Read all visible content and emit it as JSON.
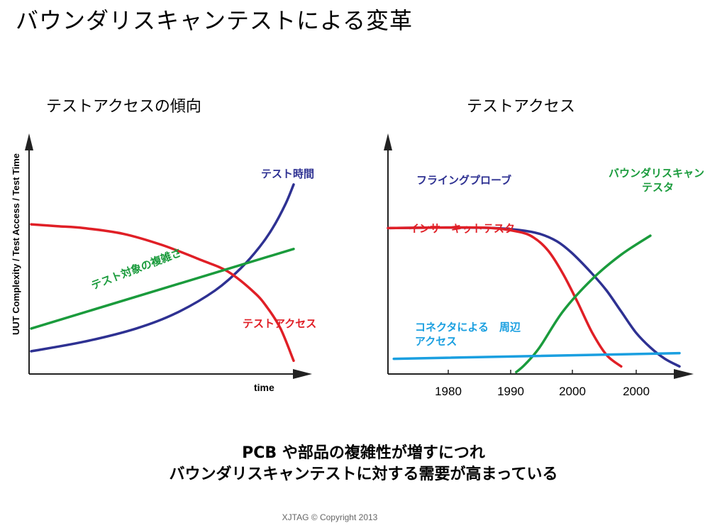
{
  "page": {
    "title": "バウンダリスキャンテストによる変革",
    "bottom_line_1": "PCB や部品の複雑性が増すにつれ",
    "bottom_line_2": "バウンダリスキャンテストに対する需要が高まっている",
    "copyright": "XJTAG © Copyright 2013"
  },
  "chart_data": [
    {
      "type": "line",
      "title": "テストアクセスの傾向",
      "xlabel": "time",
      "ylabel": "UUT Complexity  /  Test Access  /  Test Time",
      "xlim": [
        0,
        100
      ],
      "ylim": [
        0,
        100
      ],
      "grid": false,
      "series": [
        {
          "name": "テスト時間",
          "color": "#2e3192",
          "x": [
            0,
            20,
            40,
            55,
            70,
            80,
            87,
            92,
            97,
            100
          ],
          "y": [
            12,
            17,
            24,
            32,
            44,
            56,
            67,
            77,
            90,
            100
          ]
        },
        {
          "name": "テストアクセス",
          "color": "#e01f26",
          "x": [
            0,
            10,
            20,
            35,
            50,
            65,
            75,
            85,
            90,
            95,
            100
          ],
          "y": [
            79,
            78,
            77,
            74,
            68,
            60,
            54,
            43,
            35,
            24,
            7
          ]
        },
        {
          "name": "テスト対象の複雑さ",
          "color": "#1a9b3c",
          "x": [
            0,
            100
          ],
          "y": [
            24,
            66
          ]
        }
      ]
    },
    {
      "type": "line",
      "title": "テストアクセス",
      "xticks": [
        "1980",
        "1990",
        "2000",
        "2000"
      ],
      "xlim": [
        0,
        100
      ],
      "ylim": [
        0,
        100
      ],
      "grid": false,
      "series": [
        {
          "name": "フライングプローブ",
          "color": "#2e3192",
          "x": [
            0,
            20,
            35,
            45,
            52,
            58,
            63,
            70,
            75,
            80,
            85,
            90,
            95,
            100
          ],
          "y": [
            77,
            77.3,
            77.1,
            76,
            74,
            70,
            64,
            53,
            44,
            33,
            22,
            14,
            8,
            4
          ]
        },
        {
          "name": "インサーキットテスタ",
          "color": "#e01f26",
          "x": [
            0,
            20,
            35,
            45,
            50,
            55,
            60,
            65,
            70,
            75,
            80
          ],
          "y": [
            77,
            77.3,
            77.1,
            75,
            72,
            65,
            53,
            38,
            22,
            10,
            4
          ]
        },
        {
          "name": "バウンダリスキャン\nテスタ",
          "color": "#1a9b3c",
          "x": [
            44,
            47,
            52,
            60,
            70,
            80,
            90
          ],
          "y": [
            1,
            5,
            14,
            33,
            50,
            63,
            73
          ]
        },
        {
          "name": "コネクタによる　周辺\nアクセス",
          "color": "#1a9fe0",
          "x": [
            2,
            100
          ],
          "y": [
            8,
            11
          ]
        }
      ]
    }
  ]
}
